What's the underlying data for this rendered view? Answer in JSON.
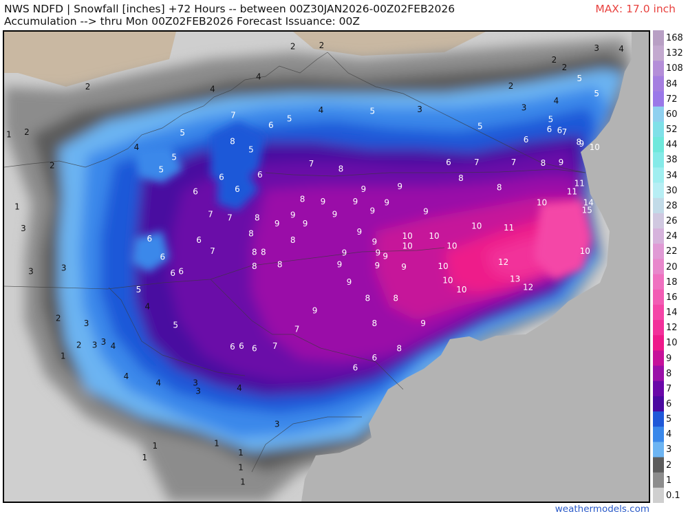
{
  "header": {
    "line1": "NWS NDFD | Snowfall [inches] +72 Hours -- between 00Z30JAN2026-00Z02FEB2026",
    "line2": "Accumulation --> thru Mon 00Z02FEB2026   Forecast Issuance: 00Z",
    "max_label": "MAX: 17.0 inch"
  },
  "credit": "weathermodels.com",
  "colorbar": {
    "labels": [
      "168",
      "132",
      "108",
      "84",
      "72",
      "60",
      "52",
      "44",
      "38",
      "34",
      "30",
      "28",
      "26",
      "24",
      "22",
      "20",
      "18",
      "16",
      "14",
      "12",
      "10",
      "9",
      "8",
      "7",
      "6",
      "5",
      "4",
      "3",
      "2",
      "1",
      "0.1"
    ],
    "colors": [
      "#b89fc4",
      "#c3a9cf",
      "#b48ed8",
      "#a57ee0",
      "#9a78e8",
      "#8fd0ef",
      "#7fe0e8",
      "#6fe8dc",
      "#85eae8",
      "#a0eef0",
      "#b7eef4",
      "#c2dbe8",
      "#d0c8e0",
      "#d6b3dc",
      "#e09ad5",
      "#e888cc",
      "#ef71c0",
      "#f25cb4",
      "#f446a7",
      "#f2309a",
      "#ee1a8a",
      "#c6129a",
      "#9a10a8",
      "#6a08a8",
      "#4a0aa0",
      "#1f58d8",
      "#3a88ea",
      "#6cb4f2",
      "#5c5c5c",
      "#8c8c8c",
      "#cfcfcf"
    ]
  },
  "map": {
    "ocean_color": "#b3b3b3",
    "labels": [
      {
        "v": "1",
        "lon": -84.28,
        "lat": 38.32
      },
      {
        "v": "2",
        "lon": -84.02,
        "lat": 38.35
      },
      {
        "v": "2",
        "lon": -83.13,
        "lat": 38.89
      },
      {
        "v": "2",
        "lon": -83.65,
        "lat": 37.95
      },
      {
        "v": "1",
        "lon": -84.16,
        "lat": 37.46
      },
      {
        "v": "3",
        "lon": -84.07,
        "lat": 37.2
      },
      {
        "v": "3",
        "lon": -83.96,
        "lat": 36.69
      },
      {
        "v": "3",
        "lon": -83.48,
        "lat": 36.73
      },
      {
        "v": "6",
        "lon": -82.04,
        "lat": 36.86
      },
      {
        "v": "4",
        "lon": -82.42,
        "lat": 38.17
      },
      {
        "v": "5",
        "lon": -81.87,
        "lat": 38.05
      },
      {
        "v": "5",
        "lon": -81.75,
        "lat": 38.34
      },
      {
        "v": "5",
        "lon": -82.06,
        "lat": 37.9
      },
      {
        "v": "4",
        "lon": -81.31,
        "lat": 38.86
      },
      {
        "v": "4",
        "lon": -80.64,
        "lat": 39.01
      },
      {
        "v": "2",
        "lon": -80.14,
        "lat": 39.37
      },
      {
        "v": "2",
        "lon": -79.72,
        "lat": 39.38
      },
      {
        "v": "7",
        "lon": -81.01,
        "lat": 38.55
      },
      {
        "v": "8",
        "lon": -81.02,
        "lat": 38.24
      },
      {
        "v": "6",
        "lon": -80.46,
        "lat": 38.43
      },
      {
        "v": "5",
        "lon": -80.19,
        "lat": 38.51
      },
      {
        "v": "5",
        "lon": -80.75,
        "lat": 38.14
      },
      {
        "v": "6",
        "lon": -81.18,
        "lat": 37.81
      },
      {
        "v": "6",
        "lon": -80.62,
        "lat": 37.84
      },
      {
        "v": "6",
        "lon": -81.56,
        "lat": 37.64
      },
      {
        "v": "6",
        "lon": -80.95,
        "lat": 37.67
      },
      {
        "v": "4",
        "lon": -79.73,
        "lat": 38.61
      },
      {
        "v": "5",
        "lon": -78.98,
        "lat": 38.6
      },
      {
        "v": "3",
        "lon": -78.29,
        "lat": 38.62
      },
      {
        "v": "2",
        "lon": -76.96,
        "lat": 38.9
      },
      {
        "v": "3",
        "lon": -76.77,
        "lat": 38.64
      },
      {
        "v": "4",
        "lon": -76.3,
        "lat": 38.72
      },
      {
        "v": "3",
        "lon": -75.71,
        "lat": 39.35
      },
      {
        "v": "4",
        "lon": -75.35,
        "lat": 39.34
      },
      {
        "v": "2",
        "lon": -76.33,
        "lat": 39.21
      },
      {
        "v": "2",
        "lon": -76.18,
        "lat": 39.12
      },
      {
        "v": "5",
        "lon": -75.96,
        "lat": 38.99
      },
      {
        "v": "5",
        "lon": -75.71,
        "lat": 38.81
      },
      {
        "v": "5",
        "lon": -77.41,
        "lat": 38.42
      },
      {
        "v": "5",
        "lon": -76.38,
        "lat": 38.5
      },
      {
        "v": "6",
        "lon": -76.4,
        "lat": 38.38
      },
      {
        "v": "6",
        "lon": -76.25,
        "lat": 38.37
      },
      {
        "v": "6",
        "lon": -76.74,
        "lat": 38.26
      },
      {
        "v": "7",
        "lon": -76.18,
        "lat": 38.35
      },
      {
        "v": "8",
        "lon": -75.97,
        "lat": 38.23
      },
      {
        "v": "9",
        "lon": -75.93,
        "lat": 38.21
      },
      {
        "v": "10",
        "lon": -75.74,
        "lat": 38.17
      },
      {
        "v": "7",
        "lon": -79.87,
        "lat": 37.97
      },
      {
        "v": "8",
        "lon": -79.44,
        "lat": 37.91
      },
      {
        "v": "6",
        "lon": -77.87,
        "lat": 37.99
      },
      {
        "v": "7",
        "lon": -77.46,
        "lat": 37.99
      },
      {
        "v": "7",
        "lon": -76.92,
        "lat": 37.99
      },
      {
        "v": "8",
        "lon": -76.49,
        "lat": 37.98
      },
      {
        "v": "9",
        "lon": -76.23,
        "lat": 37.99
      },
      {
        "v": "8",
        "lon": -77.69,
        "lat": 37.8
      },
      {
        "v": "8",
        "lon": -77.13,
        "lat": 37.69
      },
      {
        "v": "11",
        "lon": -75.96,
        "lat": 37.74
      },
      {
        "v": "11",
        "lon": -76.07,
        "lat": 37.64
      },
      {
        "v": "9",
        "lon": -79.11,
        "lat": 37.67
      },
      {
        "v": "9",
        "lon": -78.58,
        "lat": 37.7
      },
      {
        "v": "8",
        "lon": -80.0,
        "lat": 37.55
      },
      {
        "v": "9",
        "lon": -79.7,
        "lat": 37.52
      },
      {
        "v": "9",
        "lon": -79.23,
        "lat": 37.52
      },
      {
        "v": "9",
        "lon": -78.77,
        "lat": 37.51
      },
      {
        "v": "10",
        "lon": -76.51,
        "lat": 37.51
      },
      {
        "v": "14",
        "lon": -75.83,
        "lat": 37.51
      },
      {
        "v": "15",
        "lon": -75.85,
        "lat": 37.42
      },
      {
        "v": "7",
        "lon": -81.34,
        "lat": 37.37
      },
      {
        "v": "7",
        "lon": -81.06,
        "lat": 37.33
      },
      {
        "v": "8",
        "lon": -80.66,
        "lat": 37.33
      },
      {
        "v": "9",
        "lon": -80.14,
        "lat": 37.36
      },
      {
        "v": "9",
        "lon": -79.53,
        "lat": 37.37
      },
      {
        "v": "9",
        "lon": -78.98,
        "lat": 37.41
      },
      {
        "v": "9",
        "lon": -78.2,
        "lat": 37.4
      },
      {
        "v": "9",
        "lon": -80.37,
        "lat": 37.26
      },
      {
        "v": "9",
        "lon": -79.96,
        "lat": 37.26
      },
      {
        "v": "10",
        "lon": -77.46,
        "lat": 37.23
      },
      {
        "v": "11",
        "lon": -76.99,
        "lat": 37.21
      },
      {
        "v": "9",
        "lon": -79.17,
        "lat": 37.16
      },
      {
        "v": "8",
        "lon": -80.75,
        "lat": 37.14
      },
      {
        "v": "6",
        "lon": -82.23,
        "lat": 37.08
      },
      {
        "v": "6",
        "lon": -81.51,
        "lat": 37.06
      },
      {
        "v": "8",
        "lon": -80.14,
        "lat": 37.06
      },
      {
        "v": "10",
        "lon": -78.47,
        "lat": 37.11
      },
      {
        "v": "10",
        "lon": -78.08,
        "lat": 37.11
      },
      {
        "v": "9",
        "lon": -78.95,
        "lat": 37.04
      },
      {
        "v": "10",
        "lon": -78.47,
        "lat": 36.99
      },
      {
        "v": "10",
        "lon": -77.82,
        "lat": 36.99
      },
      {
        "v": "10",
        "lon": -75.88,
        "lat": 36.93
      },
      {
        "v": "7",
        "lon": -81.31,
        "lat": 36.93
      },
      {
        "v": "8",
        "lon": -80.7,
        "lat": 36.92
      },
      {
        "v": "8",
        "lon": -80.57,
        "lat": 36.92
      },
      {
        "v": "9",
        "lon": -79.39,
        "lat": 36.91
      },
      {
        "v": "9",
        "lon": -78.9,
        "lat": 36.91
      },
      {
        "v": "9",
        "lon": -78.79,
        "lat": 36.87
      },
      {
        "v": "12",
        "lon": -77.07,
        "lat": 36.8
      },
      {
        "v": "8",
        "lon": -80.7,
        "lat": 36.75
      },
      {
        "v": "8",
        "lon": -80.33,
        "lat": 36.77
      },
      {
        "v": "9",
        "lon": -79.46,
        "lat": 36.77
      },
      {
        "v": "9",
        "lon": -78.91,
        "lat": 36.76
      },
      {
        "v": "9",
        "lon": -78.52,
        "lat": 36.74
      },
      {
        "v": "10",
        "lon": -77.95,
        "lat": 36.75
      },
      {
        "v": "6",
        "lon": -81.89,
        "lat": 36.67
      },
      {
        "v": "6",
        "lon": -81.77,
        "lat": 36.69
      },
      {
        "v": "10",
        "lon": -77.88,
        "lat": 36.58
      },
      {
        "v": "13",
        "lon": -76.9,
        "lat": 36.6
      },
      {
        "v": "9",
        "lon": -79.32,
        "lat": 36.56
      },
      {
        "v": "10",
        "lon": -77.68,
        "lat": 36.47
      },
      {
        "v": "12",
        "lon": -76.71,
        "lat": 36.5
      },
      {
        "v": "5",
        "lon": -82.39,
        "lat": 36.47
      },
      {
        "v": "8",
        "lon": -79.05,
        "lat": 36.37
      },
      {
        "v": "8",
        "lon": -78.64,
        "lat": 36.37
      },
      {
        "v": "4",
        "lon": -82.26,
        "lat": 36.27
      },
      {
        "v": "9",
        "lon": -79.82,
        "lat": 36.22
      },
      {
        "v": "9",
        "lon": -78.24,
        "lat": 36.07
      },
      {
        "v": "8",
        "lon": -78.95,
        "lat": 36.07
      },
      {
        "v": "5",
        "lon": -81.85,
        "lat": 36.05
      },
      {
        "v": "7",
        "lon": -80.08,
        "lat": 36.0
      },
      {
        "v": "6",
        "lon": -81.02,
        "lat": 35.79
      },
      {
        "v": "6",
        "lon": -80.89,
        "lat": 35.8
      },
      {
        "v": "6",
        "lon": -80.7,
        "lat": 35.77
      },
      {
        "v": "7",
        "lon": -80.4,
        "lat": 35.8
      },
      {
        "v": "8",
        "lon": -78.59,
        "lat": 35.77
      },
      {
        "v": "6",
        "lon": -78.95,
        "lat": 35.66
      },
      {
        "v": "6",
        "lon": -79.23,
        "lat": 35.54
      },
      {
        "v": "2",
        "lon": -83.56,
        "lat": 36.13
      },
      {
        "v": "3",
        "lon": -83.15,
        "lat": 36.07
      },
      {
        "v": "3",
        "lon": -82.9,
        "lat": 35.85
      },
      {
        "v": "2",
        "lon": -83.26,
        "lat": 35.81
      },
      {
        "v": "3",
        "lon": -83.03,
        "lat": 35.81
      },
      {
        "v": "4",
        "lon": -82.76,
        "lat": 35.8
      },
      {
        "v": "1",
        "lon": -83.49,
        "lat": 35.68
      },
      {
        "v": "4",
        "lon": -82.57,
        "lat": 35.44
      },
      {
        "v": "4",
        "lon": -82.1,
        "lat": 35.36
      },
      {
        "v": "3",
        "lon": -81.56,
        "lat": 35.36
      },
      {
        "v": "3",
        "lon": -81.52,
        "lat": 35.26
      },
      {
        "v": "4",
        "lon": -80.92,
        "lat": 35.3
      },
      {
        "v": "3",
        "lon": -80.37,
        "lat": 34.87
      },
      {
        "v": "1",
        "lon": -82.15,
        "lat": 34.61
      },
      {
        "v": "1",
        "lon": -81.25,
        "lat": 34.64
      },
      {
        "v": "1",
        "lon": -80.9,
        "lat": 34.53
      },
      {
        "v": "1",
        "lon": -82.3,
        "lat": 34.47
      },
      {
        "v": "1",
        "lon": -80.9,
        "lat": 34.35
      },
      {
        "v": "1",
        "lon": -80.87,
        "lat": 34.18
      }
    ]
  }
}
